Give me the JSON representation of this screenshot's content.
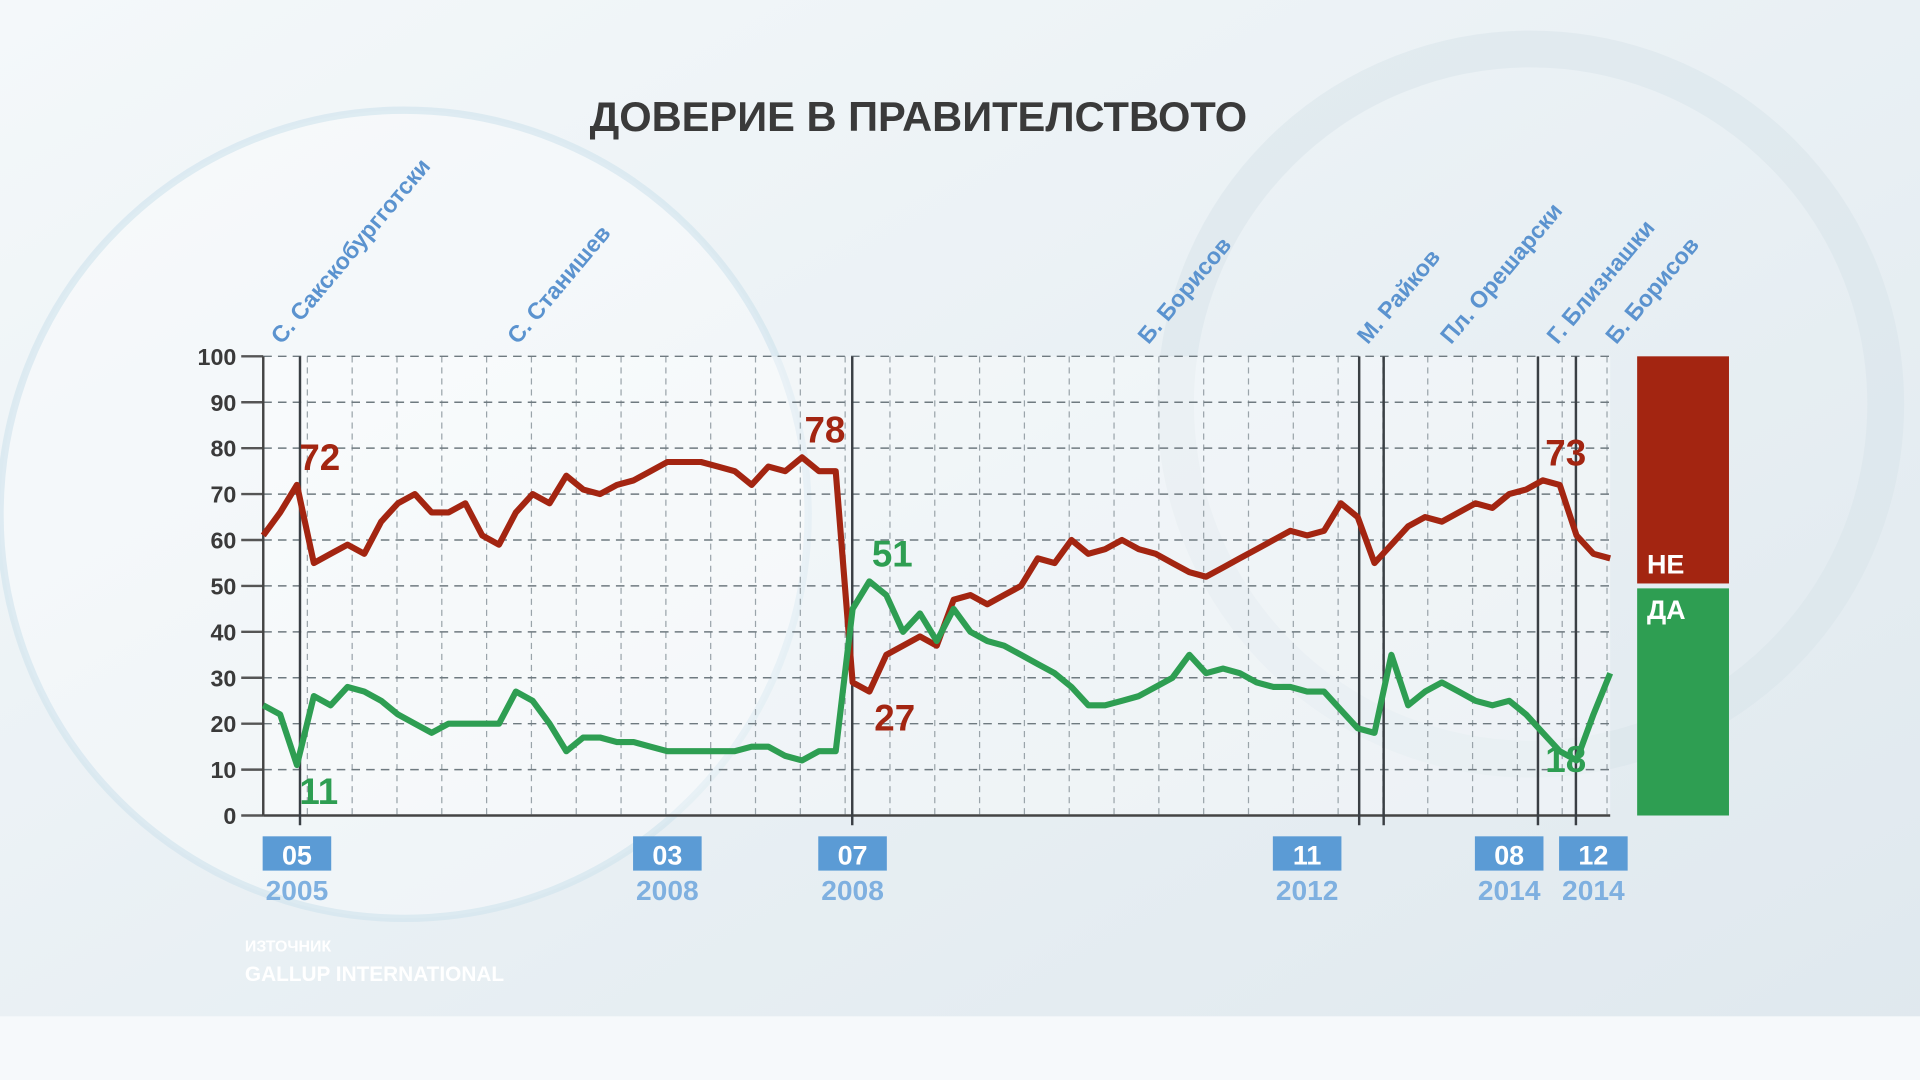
{
  "chart_data": {
    "type": "line",
    "title": "ДОВЕРИЕ В ПРАВИТЕЛСТВОТО",
    "categories": [
      null,
      null,
      {
        "month": "05",
        "year": "2005"
      },
      null,
      null,
      null,
      null,
      null,
      null,
      null,
      null,
      null,
      null,
      null,
      null,
      null,
      null,
      null,
      null,
      null,
      null,
      null,
      null,
      null,
      {
        "month": "03",
        "year": "2008"
      },
      null,
      null,
      null,
      null,
      null,
      null,
      null,
      null,
      null,
      null,
      {
        "month": "07",
        "year": "2008"
      },
      null,
      null,
      null,
      null,
      null,
      null,
      null,
      null,
      null,
      null,
      null,
      null,
      null,
      null,
      null,
      null,
      null,
      null,
      null,
      null,
      null,
      null,
      null,
      null,
      null,
      null,
      {
        "month": "11",
        "year": "2012"
      },
      null,
      null,
      null,
      null,
      null,
      null,
      null,
      null,
      null,
      null,
      null,
      {
        "month": "08",
        "year": "2014"
      },
      null,
      null,
      null,
      null,
      {
        "month": "12",
        "year": "2014"
      },
      null
    ],
    "series": [
      {
        "name": "НЕ",
        "color": "#a32511",
        "labeled": [
          2,
          32,
          36,
          76
        ],
        "values": [
          61,
          66,
          72,
          55,
          57,
          59,
          57,
          64,
          68,
          70,
          66,
          66,
          68,
          61,
          59,
          66,
          70,
          68,
          74,
          71,
          70,
          72,
          73,
          75,
          77,
          77,
          77,
          76,
          75,
          72,
          76,
          75,
          78,
          75,
          75,
          29,
          27,
          35,
          37,
          39,
          37,
          47,
          48,
          46,
          48,
          50,
          56,
          55,
          60,
          57,
          58,
          60,
          58,
          57,
          55,
          53,
          52,
          54,
          56,
          58,
          60,
          62,
          61,
          62,
          68,
          65,
          55,
          59,
          63,
          65,
          64,
          66,
          68,
          67,
          70,
          71,
          73,
          72,
          61,
          57,
          56
        ]
      },
      {
        "name": "ДА",
        "color": "#2e9e52",
        "labeled": [
          2,
          36,
          76
        ],
        "values": [
          24,
          22,
          11,
          26,
          24,
          28,
          27,
          25,
          22,
          20,
          18,
          20,
          20,
          20,
          20,
          27,
          25,
          20,
          14,
          17,
          17,
          16,
          16,
          15,
          14,
          14,
          14,
          14,
          14,
          15,
          15,
          13,
          12,
          14,
          14,
          45,
          51,
          48,
          40,
          44,
          38,
          45,
          40,
          38,
          37,
          35,
          33,
          31,
          28,
          24,
          24,
          25,
          26,
          28,
          30,
          35,
          31,
          32,
          31,
          29,
          28,
          28,
          27,
          27,
          23,
          19,
          18,
          35,
          24,
          27,
          29,
          27,
          25,
          24,
          25,
          22,
          18,
          14,
          12,
          22,
          31
        ]
      }
    ],
    "ylim": [
      0,
      100
    ],
    "yticks": [
      0,
      10,
      20,
      30,
      40,
      50,
      60,
      70,
      80,
      90,
      100
    ],
    "grid": true,
    "events": [
      "С. Сакскобургготски",
      "С. Станишев",
      "Б. Борисов",
      "М. Райков",
      "Пл. Орешарски",
      "Г. Близнашки",
      "Б. Борисов"
    ],
    "source_label": "ИЗТОЧНИК",
    "source": "GALLUP INTERNATIONAL"
  }
}
